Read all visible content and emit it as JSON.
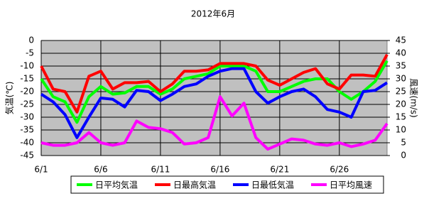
{
  "chart_data": {
    "type": "line",
    "title": "2012年6月",
    "y_label": "気温(℃)",
    "y2_label": "風速(m/s)",
    "categories": [
      "6/1",
      null,
      null,
      null,
      null,
      "6/6",
      null,
      null,
      null,
      null,
      "6/11",
      null,
      null,
      null,
      null,
      "6/16",
      null,
      null,
      null,
      null,
      "6/21",
      null,
      null,
      null,
      null,
      "6/26",
      null,
      null,
      null,
      null
    ],
    "ylim": [
      -45,
      0
    ],
    "yticks": [
      0,
      -5,
      -10,
      -15,
      -20,
      -25,
      -30,
      -35,
      -40,
      -45
    ],
    "y2lim": [
      0,
      45
    ],
    "y2ticks": [
      45,
      40,
      35,
      30,
      25,
      20,
      15,
      10,
      5,
      0
    ],
    "grid": true,
    "legend": "bottom",
    "series": [
      {
        "name": "日平均気温",
        "color": "#00ff00",
        "values": [
          -15,
          -22,
          -24,
          -32,
          -22,
          -18,
          -21,
          -20.5,
          -18,
          -18,
          -21,
          -19,
          -15,
          -14,
          -13,
          -10,
          -10,
          -10,
          -12,
          -20,
          -20,
          -18,
          -16,
          -15,
          -15,
          -20,
          -23,
          -20,
          -16,
          -8
        ]
      },
      {
        "name": "日最高気温",
        "color": "#ff0000",
        "values": [
          -10,
          -19,
          -20,
          -28,
          -14,
          -12,
          -19,
          -16.5,
          -16.5,
          -16,
          -20,
          -17,
          -12,
          -12,
          -11.5,
          -9,
          -9,
          -9,
          -10,
          -15.5,
          -17.5,
          -15,
          -12.5,
          -11,
          -17,
          -19,
          -13.5,
          -13.5,
          -14,
          -5.5
        ]
      },
      {
        "name": "日最低気温",
        "color": "#0000ff",
        "values": [
          -21,
          -24,
          -29,
          -38,
          -30,
          -22.5,
          -23,
          -26,
          -19.5,
          -20,
          -23.5,
          -21,
          -18,
          -17,
          -14,
          -12,
          -11,
          -11,
          -20,
          -24.5,
          -22,
          -20,
          -19,
          -22,
          -27,
          -28,
          -30,
          -20,
          -19.5,
          -16.5
        ]
      },
      {
        "name": "日平均風速",
        "color": "#ff00ff",
        "axis": "y2",
        "values": [
          5,
          4,
          4,
          5,
          9,
          5,
          4,
          5,
          13.5,
          11,
          10.5,
          9,
          4.5,
          5,
          7,
          23,
          15.5,
          20.5,
          7,
          2.5,
          4.5,
          6.5,
          6,
          4.5,
          4,
          5,
          3.5,
          4.5,
          6,
          12.5
        ]
      }
    ]
  }
}
